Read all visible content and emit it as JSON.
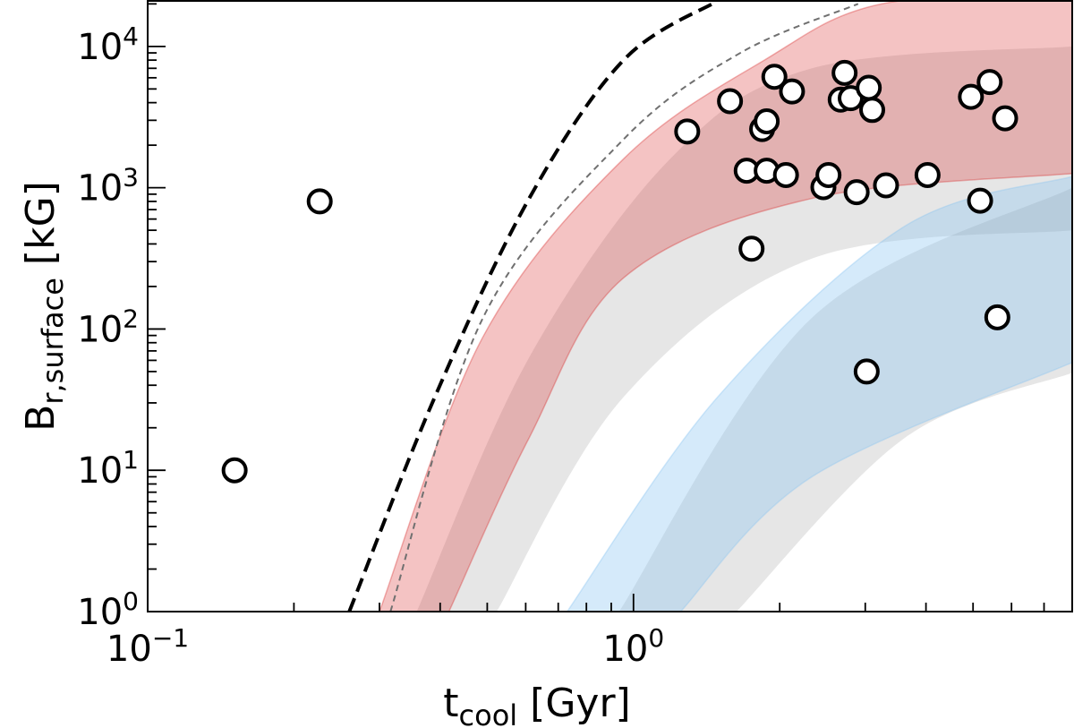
{
  "chart_data": {
    "type": "scatter",
    "title": "",
    "xlabel": {
      "main": "t",
      "sub": "cool",
      "unit": " [Gyr]"
    },
    "ylabel": {
      "main": "B",
      "sub": "r,surface",
      "unit": " [kG]"
    },
    "xscale": "log",
    "yscale": "log",
    "xlim": [
      0.1,
      8
    ],
    "ylim": [
      1,
      21000
    ],
    "grid": false,
    "x_ticks": [
      {
        "value": 0.1,
        "base": "10",
        "exp": "−1"
      },
      {
        "value": 1,
        "base": "10",
        "exp": "0"
      }
    ],
    "y_ticks": [
      {
        "value": 1,
        "base": "10",
        "exp": "0"
      },
      {
        "value": 10,
        "base": "10",
        "exp": "1"
      },
      {
        "value": 100,
        "base": "10",
        "exp": "2"
      },
      {
        "value": 1000,
        "base": "10",
        "exp": "3"
      },
      {
        "value": 10000,
        "base": "10",
        "exp": "4"
      }
    ],
    "points": [
      [
        0.151,
        10
      ],
      [
        0.226,
        800
      ],
      [
        1.29,
        2500
      ],
      [
        1.58,
        4100
      ],
      [
        1.95,
        6100
      ],
      [
        2.12,
        4800
      ],
      [
        1.84,
        2600
      ],
      [
        1.88,
        2950
      ],
      [
        1.71,
        1320
      ],
      [
        1.88,
        1320
      ],
      [
        2.06,
        1230
      ],
      [
        1.75,
        370
      ],
      [
        2.46,
        1010
      ],
      [
        2.52,
        1230
      ],
      [
        2.72,
        6500
      ],
      [
        2.67,
        4200
      ],
      [
        2.8,
        4300
      ],
      [
        3.05,
        5100
      ],
      [
        3.1,
        3550
      ],
      [
        2.88,
        930
      ],
      [
        3.31,
        1040
      ],
      [
        4.03,
        1230
      ],
      [
        4.95,
        4400
      ],
      [
        5.41,
        5600
      ],
      [
        5.17,
        810
      ],
      [
        5.82,
        3100
      ],
      [
        5.61,
        121
      ],
      [
        3.02,
        50
      ]
    ],
    "bands": [
      {
        "color": "#808080",
        "upper": [
          [
            0.358,
            1
          ],
          [
            0.61,
            63
          ],
          [
            1.19,
            1600
          ],
          [
            2.33,
            7000
          ],
          [
            8,
            10000
          ]
        ],
        "lower": [
          [
            0.523,
            1
          ],
          [
            0.954,
            33
          ],
          [
            2.33,
            315
          ],
          [
            8,
            500
          ]
        ]
      },
      {
        "color": "#808080",
        "upper": [
          [
            0.934,
            1
          ],
          [
            2.33,
            120
          ],
          [
            8,
            1000
          ]
        ],
        "lower": [
          [
            1.63,
            1
          ],
          [
            3.62,
            17
          ],
          [
            8,
            49
          ]
        ]
      },
      {
        "color": "#d62728",
        "upper": [
          [
            0.3,
            1
          ],
          [
            0.49,
            88
          ],
          [
            0.954,
            1600
          ],
          [
            1.86,
            8000
          ],
          [
            3.24,
            20000
          ],
          [
            8,
            23000
          ]
        ],
        "lower": [
          [
            0.417,
            1
          ],
          [
            0.61,
            17
          ],
          [
            0.954,
            230
          ],
          [
            2.33,
            840
          ],
          [
            8,
            1260
          ]
        ]
      },
      {
        "color": "#87c4f0",
        "upper": [
          [
            0.73,
            1
          ],
          [
            1.49,
            33
          ],
          [
            3.62,
            535
          ],
          [
            8,
            1200
          ]
        ],
        "lower": [
          [
            1.25,
            1
          ],
          [
            2.33,
            9
          ],
          [
            8,
            58
          ]
        ]
      }
    ],
    "lines": [
      {
        "style": "dashed",
        "color": "#000000",
        "points": [
          [
            0.26,
            1
          ],
          [
            0.39,
            33
          ],
          [
            0.61,
            840
          ],
          [
            0.954,
            8000
          ],
          [
            1.49,
            21000
          ]
        ]
      },
      {
        "style": "dashed-thin",
        "color": "#707070",
        "points": [
          [
            0.316,
            1
          ],
          [
            0.49,
            120
          ],
          [
            0.954,
            2200
          ],
          [
            1.66,
            9000
          ],
          [
            2.9,
            20000
          ]
        ]
      }
    ]
  }
}
